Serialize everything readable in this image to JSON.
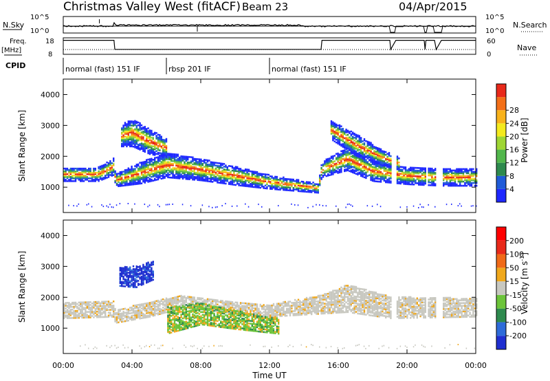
{
  "header": {
    "title": "Christmas Valley West (fitACF)",
    "beam": "Beam 23",
    "date": "04/Apr/2015"
  },
  "summary": {
    "nsky_label": "N.Sky",
    "nsearch_label": "N.Search",
    "nsky_ticks": [
      "10^5",
      "10^0"
    ],
    "nsearch_ticks": [
      "10^5",
      "10^0"
    ],
    "freq_label": "Freq.",
    "freq_unit": "[MHz]",
    "freq_ticks": [
      "18",
      "8"
    ],
    "nave_label": "Nave",
    "nave_ticks": [
      "60",
      "0"
    ],
    "cpid_label": "CPID",
    "cpid_segments": [
      {
        "label": "normal (fast) 151 IF",
        "start": 0,
        "end": 6
      },
      {
        "label": "rbsp 201 IF",
        "start": 6,
        "end": 12
      },
      {
        "label": "normal (fast) 151 IF",
        "start": 12,
        "end": 24
      }
    ],
    "freq_series": {
      "name": "Freq.",
      "x": [
        0,
        2.95,
        3.0,
        15.0,
        15.05,
        19.0,
        19.05,
        19.35,
        21.0,
        21.05,
        21.1,
        21.6,
        21.7,
        22.0,
        24.0
      ],
      "y": [
        16.5,
        16.5,
        11.0,
        11.0,
        16.5,
        16.5,
        11.0,
        16.5,
        16.5,
        11.0,
        16.5,
        16.5,
        11.0,
        16.5,
        16.5
      ]
    },
    "nsearch_breaks": [
      [
        19.0,
        19.35
      ],
      [
        21.0,
        21.12
      ],
      [
        21.55,
        22.0
      ]
    ]
  },
  "chart_data": [
    {
      "type": "heatmap",
      "title": "Power",
      "ylabel": "Slant Range [km]",
      "xlabel": "Time UT",
      "ylim": [
        180,
        4500
      ],
      "xlim": [
        0,
        24
      ],
      "yticks": [
        "1000",
        "2000",
        "3000",
        "4000"
      ],
      "xticks": [
        "00:00",
        "04:00",
        "08:00",
        "12:00",
        "16:00",
        "20:00",
        "00:00"
      ],
      "colorbar": {
        "label": "Power [dB]",
        "ticks": [
          "4",
          "8",
          "12",
          "16",
          "20",
          "24",
          "28"
        ],
        "colors": [
          "#1e28ff",
          "#1f5bd8",
          "#2e8a4e",
          "#52b74c",
          "#9fd634",
          "#f4ea1e",
          "#f8b21b",
          "#f36f18",
          "#e8291a"
        ]
      },
      "echo_bands": [
        {
          "name": "main band",
          "x": [
            0,
            2,
            2.9,
            3.0,
            4.5,
            6,
            8,
            10,
            12,
            14.8,
            15.0,
            16.5,
            18,
            20,
            22,
            24
          ],
          "center": [
            1450,
            1450,
            1700,
            1250,
            1500,
            1750,
            1600,
            1400,
            1200,
            1000,
            1600,
            1950,
            1550,
            1400,
            1350,
            1350
          ],
          "width": [
            450,
            450,
            550,
            400,
            700,
            800,
            700,
            600,
            450,
            300,
            500,
            750,
            650,
            550,
            550,
            550
          ]
        },
        {
          "name": "upper patch",
          "x": [
            3.3,
            4.0,
            5.0,
            6.0
          ],
          "center": [
            2700,
            2800,
            2500,
            2300
          ],
          "width": [
            700,
            900,
            800,
            600
          ]
        },
        {
          "name": "far band",
          "x": [
            15.5,
            17,
            18.5,
            19.5
          ],
          "center": [
            2900,
            2400,
            2000,
            1800
          ],
          "width": [
            600,
            700,
            500,
            400
          ]
        }
      ],
      "gaps": [
        [
          19.05,
          19.35
        ],
        [
          21.05,
          21.15
        ],
        [
          21.6,
          22.0
        ]
      ]
    },
    {
      "type": "heatmap",
      "title": "Velocity",
      "ylabel": "Slant Range [km]",
      "xlabel": "Time UT",
      "ylim": [
        180,
        4500
      ],
      "xlim": [
        0,
        24
      ],
      "yticks": [
        "1000",
        "2000",
        "3000",
        "4000"
      ],
      "xticks": [
        "00:00",
        "04:00",
        "08:00",
        "12:00",
        "16:00",
        "20:00",
        "00:00"
      ],
      "colorbar": {
        "label_main": "Velocity [m s",
        "label_sup": "-1",
        "label_close": "]",
        "ticks": [
          "200",
          "100",
          "50",
          "15",
          "-15",
          "-50",
          "-100",
          "-200"
        ],
        "colors": [
          "#1f2fd0",
          "#2e6bd9",
          "#2e8a4e",
          "#6cc43a",
          "#c8c8c0",
          "#f0a81c",
          "#f06a18",
          "#e82a1a",
          "#ff0000"
        ]
      },
      "ground_scatter_color": "#c8c8c0",
      "echo_bands": [
        {
          "name": "ground scatter",
          "x": [
            0,
            2.9,
            3.0,
            5,
            7,
            10,
            12,
            15,
            16.5,
            19,
            24
          ],
          "center": [
            1600,
            1650,
            1400,
            1650,
            1900,
            1700,
            1600,
            1800,
            2000,
            1700,
            1700
          ],
          "width": [
            500,
            500,
            400,
            500,
            400,
            400,
            400,
            600,
            900,
            700,
            600
          ]
        },
        {
          "name": "ionospheric flow",
          "x": [
            6,
            8,
            10,
            12.5
          ],
          "center": [
            1300,
            1500,
            1300,
            1100
          ],
          "width": [
            900,
            700,
            600,
            500
          ]
        },
        {
          "name": "high velocity patch",
          "x": [
            3.2,
            4.2,
            5.2
          ],
          "center": [
            2700,
            2700,
            2900
          ],
          "width": [
            600,
            700,
            600
          ]
        }
      ],
      "gaps": [
        [
          19.05,
          19.35
        ],
        [
          21.05,
          21.15
        ],
        [
          21.6,
          22.0
        ]
      ]
    }
  ]
}
